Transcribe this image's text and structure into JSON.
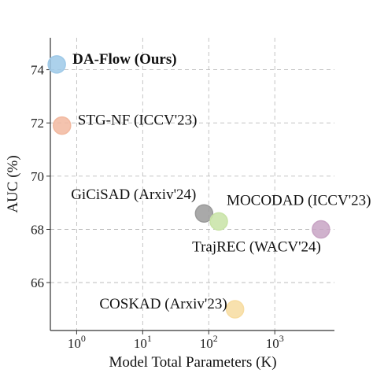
{
  "chart_data": {
    "type": "scatter",
    "title": "",
    "xlabel": "Model Total Parameters  (K)",
    "ylabel": "AUC (%)",
    "x_scale": "log",
    "xlim": [
      0.4,
      8000
    ],
    "ylim": [
      64.2,
      75.2
    ],
    "grid": true,
    "x_ticks": [
      {
        "value": 1,
        "base": "10",
        "exp": "0"
      },
      {
        "value": 10,
        "base": "10",
        "exp": "1"
      },
      {
        "value": 100,
        "base": "10",
        "exp": "2"
      },
      {
        "value": 1000,
        "base": "10",
        "exp": "3"
      }
    ],
    "y_ticks": [
      66,
      68,
      70,
      72,
      74
    ],
    "points": [
      {
        "label": "DA-Flow (Ours)",
        "x": 0.5,
        "y": 74.2,
        "color": "#9ec9e8",
        "bold": true
      },
      {
        "label": "STG-NF (ICCV'23)",
        "x": 0.6,
        "y": 71.9,
        "color": "#f2b9a0",
        "bold": false
      },
      {
        "label": "GiCiSAD (Arxiv'24)",
        "x": 85,
        "y": 68.6,
        "color": "#9a9a9a",
        "bold": false
      },
      {
        "label": "MOCODAD (ICCV'23)",
        "x": 142,
        "y": 68.3,
        "color": "#c8e3a6",
        "bold": false
      },
      {
        "label": "TrajREC (WACV'24)",
        "x": 5000,
        "y": 68.0,
        "color": "#c8a4c4",
        "bold": false
      },
      {
        "label": "COSKAD (Arxiv'23)",
        "x": 250,
        "y": 65.0,
        "color": "#f7dca0",
        "bold": false
      }
    ]
  }
}
